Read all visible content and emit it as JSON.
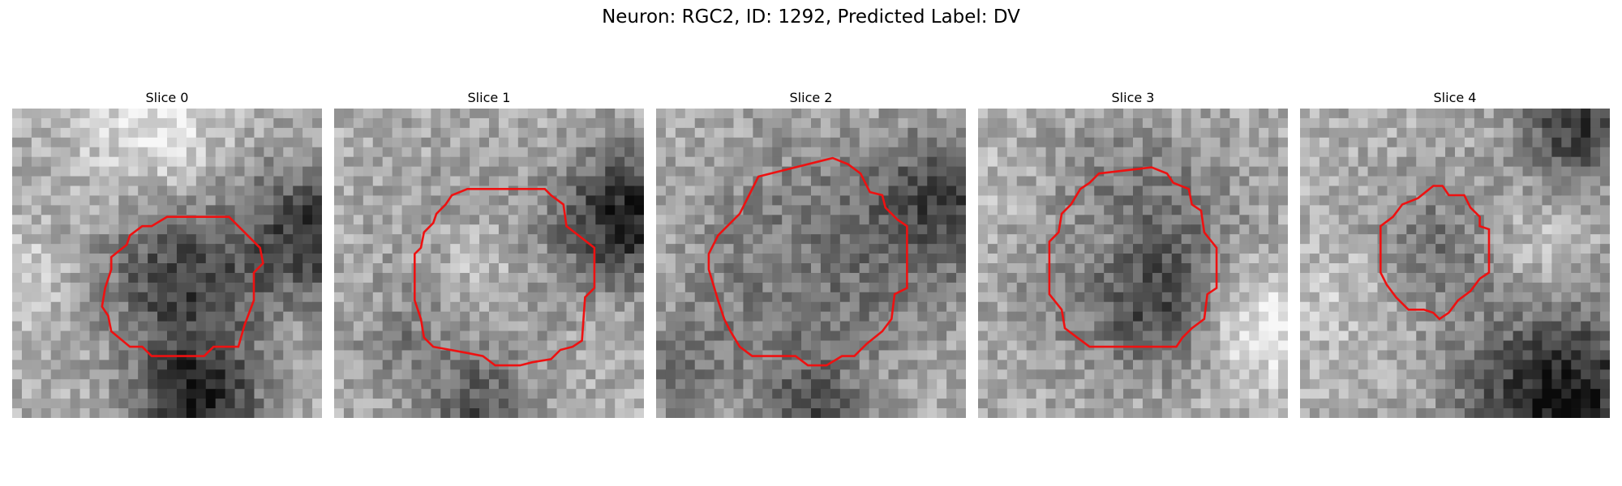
{
  "figure": {
    "title": "Neuron: RGC2, ID: 1292, Predicted Label: DV"
  },
  "panels": [
    {
      "title": "Slice 0"
    },
    {
      "title": "Slice 1"
    },
    {
      "title": "Slice 2"
    },
    {
      "title": "Slice 3"
    },
    {
      "title": "Slice 4"
    }
  ],
  "colors": {
    "contour": "#ee1111"
  }
}
